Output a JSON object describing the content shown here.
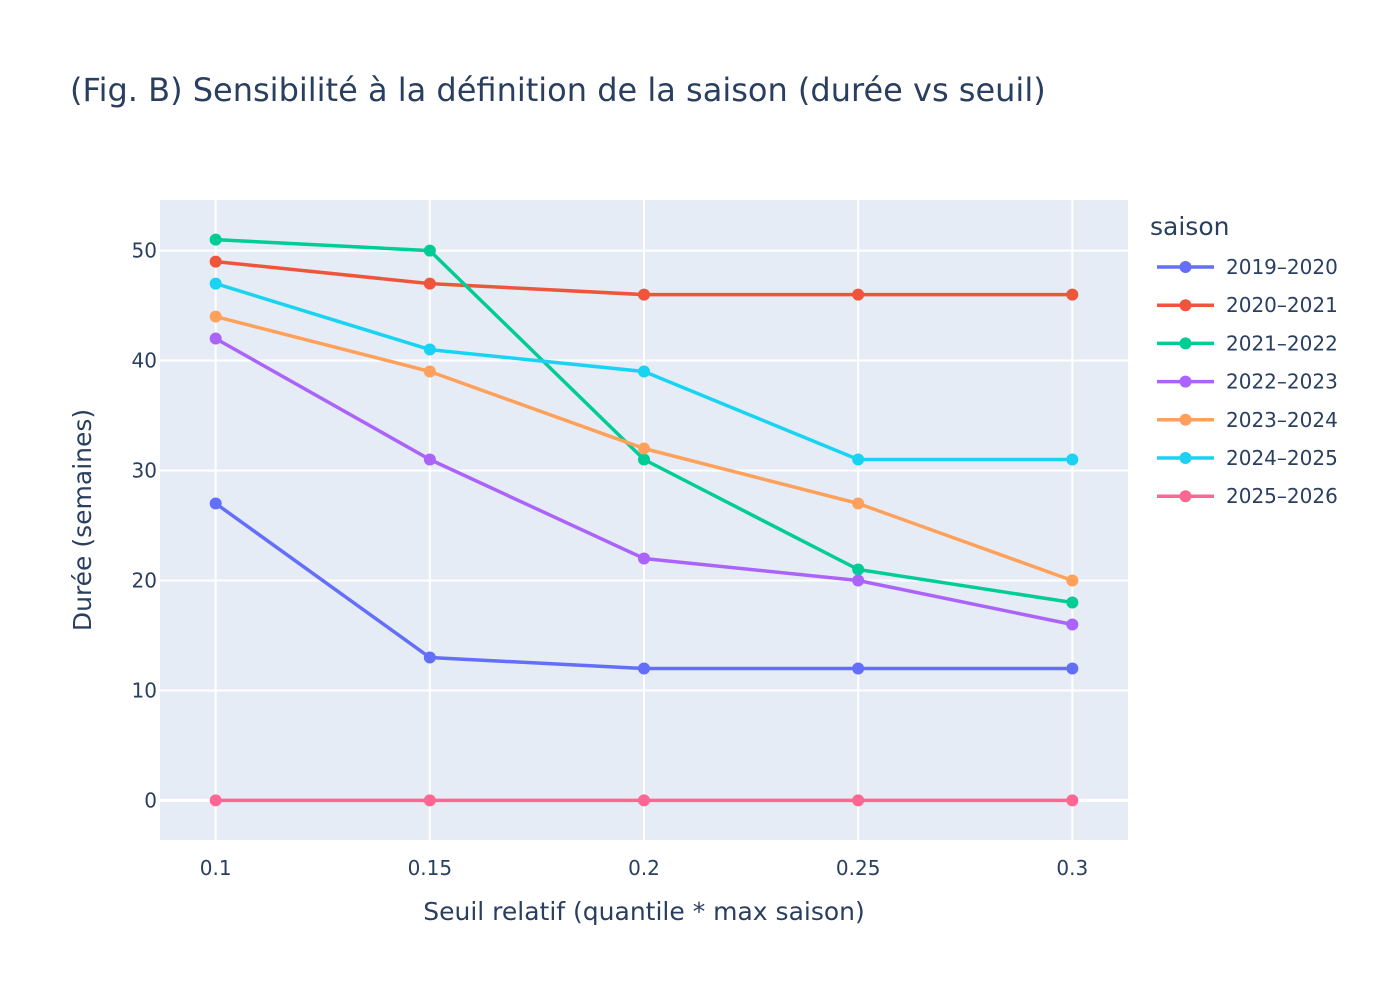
{
  "chart_data": {
    "type": "line",
    "title": "(Fig. B) Sensibilité à la définition de la saison (durée vs seuil)",
    "xlabel": "Seuil relatif (quantile * max saison)",
    "ylabel": "Durée (semaines)",
    "x": [
      0.1,
      0.15,
      0.2,
      0.25,
      0.3
    ],
    "x_tick_labels": [
      "0.1",
      "0.15",
      "0.2",
      "0.25",
      "0.3"
    ],
    "xlim": [
      0.087,
      0.313
    ],
    "ylim": [
      -3.6,
      54.6
    ],
    "y_ticks": [
      0,
      10,
      20,
      30,
      40,
      50
    ],
    "y_tick_labels": [
      "0",
      "10",
      "20",
      "30",
      "40",
      "50"
    ],
    "grid": true,
    "legend_title": "saison",
    "legend_position": "right",
    "series": [
      {
        "name": "2019–2020",
        "color": "#636efa",
        "values": [
          27,
          13,
          12,
          12,
          12
        ]
      },
      {
        "name": "2020–2021",
        "color": "#EF553B",
        "values": [
          49,
          47,
          46,
          46,
          46
        ]
      },
      {
        "name": "2021–2022",
        "color": "#00cc96",
        "values": [
          51,
          50,
          31,
          21,
          18
        ]
      },
      {
        "name": "2022–2023",
        "color": "#ab63fa",
        "values": [
          42,
          31,
          22,
          20,
          16
        ]
      },
      {
        "name": "2023–2024",
        "color": "#FFA15A",
        "values": [
          44,
          39,
          32,
          27,
          20
        ]
      },
      {
        "name": "2024–2025",
        "color": "#19d3f3",
        "values": [
          47,
          41,
          39,
          31,
          31
        ]
      },
      {
        "name": "2025–2026",
        "color": "#FF6692",
        "values": [
          0,
          0,
          0,
          0,
          0
        ]
      }
    ]
  },
  "colors": {
    "plot_background": "#E5ECF6",
    "grid": "#ffffff",
    "text": "#2a3f5f"
  }
}
